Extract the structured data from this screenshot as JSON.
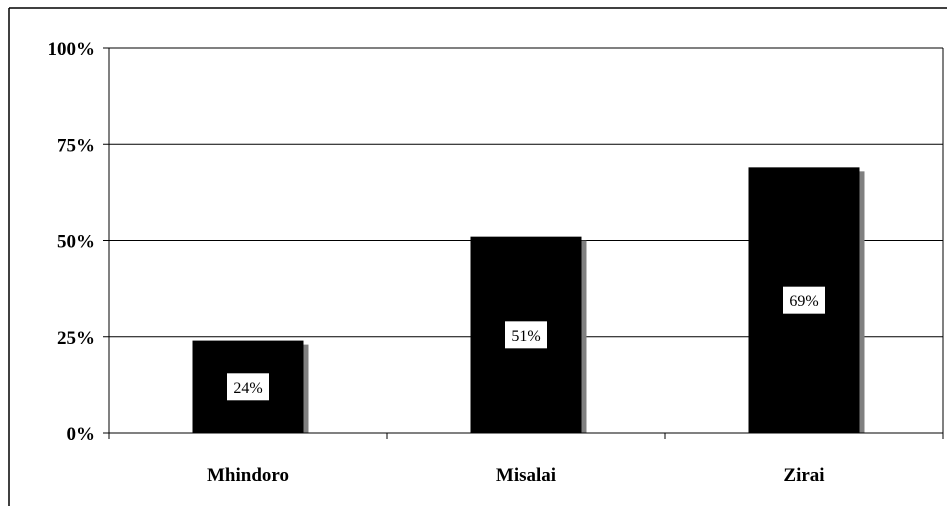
{
  "chart_data": {
    "type": "bar",
    "title": "",
    "xlabel": "",
    "ylabel": "",
    "categories": [
      "Mhindoro",
      "Misalai",
      "Zirai"
    ],
    "values": [
      24,
      51,
      69
    ],
    "data_labels": [
      "24%",
      "51%",
      "69%"
    ],
    "ylim": [
      0,
      100
    ],
    "yticks": [
      0,
      25,
      50,
      75,
      100
    ],
    "ytick_labels": [
      "0%",
      "25%",
      "50%",
      "75%",
      "100%"
    ],
    "grid": true,
    "legend": "none",
    "colors": {
      "bar": "#000000",
      "bar_shadow": "#808080",
      "gridline": "#000000",
      "label_box": "#ffffff"
    }
  }
}
